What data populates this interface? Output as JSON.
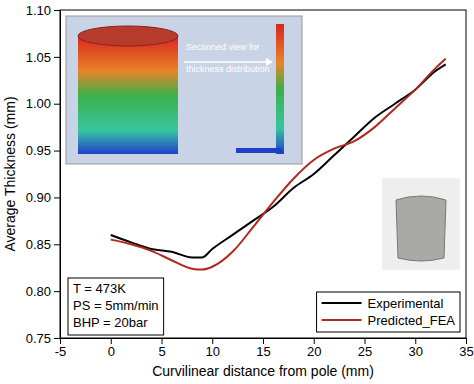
{
  "chart_data": {
    "type": "line",
    "x_label": "Curvilinear distance from pole (mm)",
    "y_label": "Average Thickness (mm)",
    "x": [
      0,
      2,
      4,
      6,
      8,
      9,
      10,
      12,
      14,
      16,
      18,
      20,
      22,
      24,
      26,
      28,
      30,
      32,
      33
    ],
    "series": [
      {
        "name": "Experimental",
        "color": "#000000",
        "values": [
          0.86,
          0.852,
          0.845,
          0.842,
          0.836,
          0.836,
          0.845,
          0.86,
          0.875,
          0.89,
          0.91,
          0.925,
          0.945,
          0.965,
          0.985,
          1.0,
          1.015,
          1.035,
          1.042
        ]
      },
      {
        "name": "Predicted_FEA",
        "color": "#b2281e",
        "values": [
          0.855,
          0.85,
          0.843,
          0.833,
          0.824,
          0.823,
          0.826,
          0.842,
          0.868,
          0.895,
          0.92,
          0.94,
          0.952,
          0.96,
          0.975,
          0.995,
          1.015,
          1.038,
          1.048
        ]
      }
    ],
    "xlim": [
      -5,
      35
    ],
    "xticks": [
      -5,
      0,
      5,
      10,
      15,
      20,
      25,
      30,
      35
    ],
    "ylim": [
      0.75,
      1.1
    ],
    "yticks": [
      0.75,
      {
        "value": 0.8,
        "label": "0.80"
      },
      0.85,
      {
        "value": 0.9,
        "label": "0.90"
      },
      0.95,
      {
        "value": 1,
        "label": "1.00"
      },
      1.05,
      {
        "value": 1.1,
        "label": "1.10"
      }
    ],
    "legend": "lower right",
    "annotations": [
      "T = 473K",
      "PS = 5mm/min",
      "BHP = 20bar"
    ],
    "inset_label": "Sectioned view for thickness distribution"
  }
}
